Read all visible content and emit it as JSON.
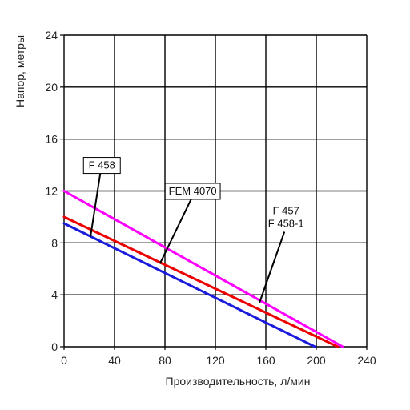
{
  "chart_data": {
    "type": "line",
    "title": "",
    "xlabel": "Производительность, л/мин",
    "ylabel": "Напор, метры",
    "xlim": [
      0,
      240
    ],
    "ylim": [
      0,
      24
    ],
    "xticks": [
      0,
      40,
      80,
      120,
      160,
      200,
      240
    ],
    "yticks": [
      0,
      4,
      8,
      12,
      16,
      20,
      24
    ],
    "grid": true,
    "series": [
      {
        "id": "s1",
        "color": "#ff00ff",
        "x": [
          0,
          221
        ],
        "y": [
          12,
          0
        ]
      },
      {
        "id": "s2",
        "color": "#ee0000",
        "x": [
          0,
          217
        ],
        "y": [
          10,
          0
        ]
      },
      {
        "id": "s3",
        "color": "#1a1adc",
        "x": [
          0,
          199
        ],
        "y": [
          9.5,
          0
        ]
      }
    ],
    "annotations": [
      {
        "id": "a1",
        "lines": [
          "F 458"
        ],
        "box": true,
        "label_at": [
          30,
          13.6
        ],
        "arrow_to": [
          21,
          8.5
        ]
      },
      {
        "id": "a2",
        "lines": [
          "FEM 4070"
        ],
        "box": true,
        "label_at": [
          102,
          11.6
        ],
        "arrow_to": [
          76,
          6.4
        ]
      },
      {
        "id": "a3",
        "lines": [
          "F 457",
          "F 458-1"
        ],
        "box": false,
        "label_at": [
          176,
          9.1
        ],
        "arrow_to": [
          155,
          3.4
        ]
      }
    ]
  }
}
